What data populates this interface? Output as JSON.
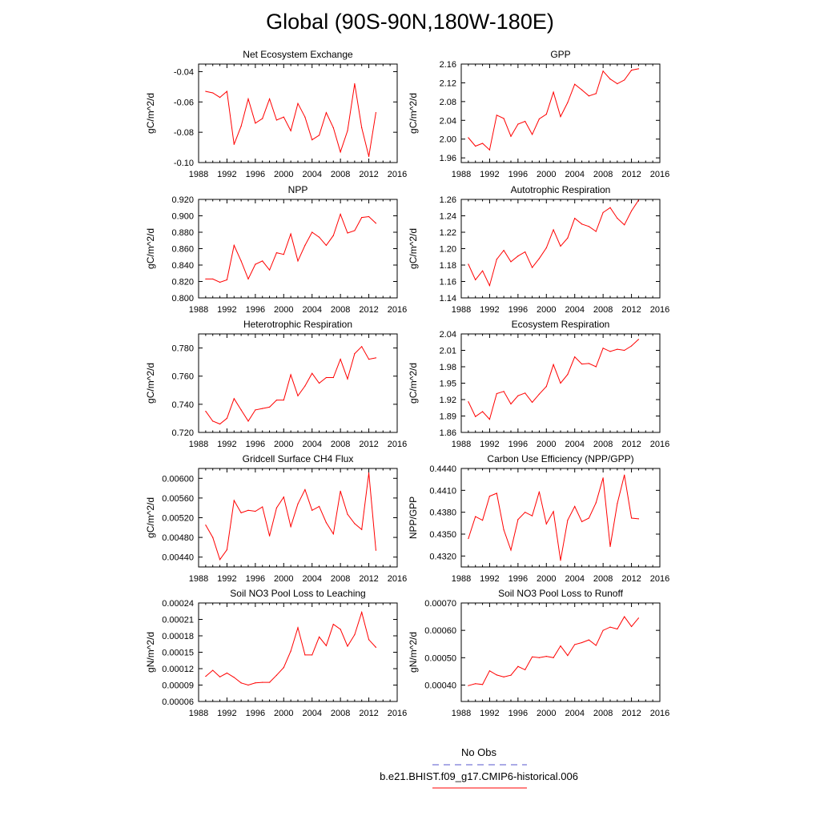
{
  "title": "Global (90S-90N,180W-180E)",
  "legend": {
    "obs_label": "No Obs",
    "obs_color": "#5555cc",
    "model_label": "b.e21.BHIST.f09_g17.CMIP6-historical.006",
    "model_color": "#ff0000"
  },
  "chart_data": [
    {
      "type": "line",
      "title": "Net Ecosystem Exchange",
      "ylabel": "gC/m^2/d",
      "xlim": [
        1988,
        2016
      ],
      "xticks": [
        1988,
        1992,
        1996,
        2000,
        2004,
        2008,
        2012,
        2016
      ],
      "ylim": [
        -0.1,
        -0.035
      ],
      "yticks": [
        -0.1,
        -0.08,
        -0.06,
        -0.04
      ],
      "ytick_labels": [
        "-0.10",
        "-0.08",
        "-0.06",
        "-0.04"
      ],
      "x": [
        1989,
        1990,
        1991,
        1992,
        1993,
        1994,
        1995,
        1996,
        1997,
        1998,
        1999,
        2000,
        2001,
        2002,
        2003,
        2004,
        2005,
        2006,
        2007,
        2008,
        2009,
        2010,
        2011,
        2012,
        2013
      ],
      "values": [
        -0.053,
        -0.054,
        -0.057,
        -0.053,
        -0.088,
        -0.076,
        -0.058,
        -0.074,
        -0.071,
        -0.058,
        -0.072,
        -0.07,
        -0.079,
        -0.061,
        -0.07,
        -0.085,
        -0.082,
        -0.067,
        -0.077,
        -0.093,
        -0.079,
        -0.048,
        -0.077,
        -0.096,
        -0.067
      ]
    },
    {
      "type": "line",
      "title": "GPP",
      "ylabel": "gC/m^2/d",
      "xlim": [
        1988,
        2016
      ],
      "xticks": [
        1988,
        1992,
        1996,
        2000,
        2004,
        2008,
        2012,
        2016
      ],
      "ylim": [
        1.95,
        2.16
      ],
      "yticks": [
        1.96,
        2.0,
        2.04,
        2.08,
        2.12,
        2.16
      ],
      "ytick_labels": [
        "1.96",
        "2.00",
        "2.04",
        "2.08",
        "2.12",
        "2.16"
      ],
      "x": [
        1989,
        1990,
        1991,
        1992,
        1993,
        1994,
        1995,
        1996,
        1997,
        1998,
        1999,
        2000,
        2001,
        2002,
        2003,
        2004,
        2005,
        2006,
        2007,
        2008,
        2009,
        2010,
        2011,
        2012,
        2013
      ],
      "values": [
        2.003,
        1.985,
        1.991,
        1.977,
        2.051,
        2.044,
        2.006,
        2.032,
        2.038,
        2.01,
        2.043,
        2.053,
        2.1,
        2.048,
        2.078,
        2.117,
        2.105,
        2.092,
        2.097,
        2.145,
        2.128,
        2.118,
        2.126,
        2.147,
        2.15
      ]
    },
    {
      "type": "line",
      "title": "NPP",
      "ylabel": "gC/m^2/d",
      "xlim": [
        1988,
        2016
      ],
      "xticks": [
        1988,
        1992,
        1996,
        2000,
        2004,
        2008,
        2012,
        2016
      ],
      "ylim": [
        0.8,
        0.92
      ],
      "yticks": [
        0.8,
        0.82,
        0.84,
        0.86,
        0.88,
        0.9,
        0.92
      ],
      "ytick_labels": [
        "0.800",
        "0.820",
        "0.840",
        "0.860",
        "0.880",
        "0.900",
        "0.920"
      ],
      "x": [
        1989,
        1990,
        1991,
        1992,
        1993,
        1994,
        1995,
        1996,
        1997,
        1998,
        1999,
        2000,
        2001,
        2002,
        2003,
        2004,
        2005,
        2006,
        2007,
        2008,
        2009,
        2010,
        2011,
        2012,
        2013
      ],
      "values": [
        0.823,
        0.823,
        0.819,
        0.822,
        0.864,
        0.845,
        0.823,
        0.841,
        0.845,
        0.834,
        0.855,
        0.853,
        0.878,
        0.845,
        0.864,
        0.88,
        0.874,
        0.864,
        0.876,
        0.902,
        0.879,
        0.882,
        0.898,
        0.899,
        0.891
      ]
    },
    {
      "type": "line",
      "title": "Autotrophic Respiration",
      "ylabel": "gC/m^2/d",
      "xlim": [
        1988,
        2016
      ],
      "xticks": [
        1988,
        1992,
        1996,
        2000,
        2004,
        2008,
        2012,
        2016
      ],
      "ylim": [
        1.14,
        1.26
      ],
      "yticks": [
        1.14,
        1.16,
        1.18,
        1.2,
        1.22,
        1.24,
        1.26
      ],
      "ytick_labels": [
        "1.14",
        "1.16",
        "1.18",
        "1.20",
        "1.22",
        "1.24",
        "1.26"
      ],
      "x": [
        1989,
        1990,
        1991,
        1992,
        1993,
        1994,
        1995,
        1996,
        1997,
        1998,
        1999,
        2000,
        2001,
        2002,
        2003,
        2004,
        2005,
        2006,
        2007,
        2008,
        2009,
        2010,
        2011,
        2012,
        2013
      ],
      "values": [
        1.181,
        1.162,
        1.173,
        1.155,
        1.187,
        1.198,
        1.184,
        1.191,
        1.196,
        1.177,
        1.188,
        1.201,
        1.223,
        1.203,
        1.213,
        1.237,
        1.23,
        1.227,
        1.221,
        1.244,
        1.25,
        1.237,
        1.229,
        1.246,
        1.259
      ]
    },
    {
      "type": "line",
      "title": "Heterotrophic Respiration",
      "ylabel": "gC/m^2/d",
      "xlim": [
        1988,
        2016
      ],
      "xticks": [
        1988,
        1992,
        1996,
        2000,
        2004,
        2008,
        2012,
        2016
      ],
      "ylim": [
        0.72,
        0.79
      ],
      "yticks": [
        0.72,
        0.74,
        0.76,
        0.78
      ],
      "ytick_labels": [
        "0.720",
        "0.740",
        "0.760",
        "0.780"
      ],
      "x": [
        1989,
        1990,
        1991,
        1992,
        1993,
        1994,
        1995,
        1996,
        1997,
        1998,
        1999,
        2000,
        2001,
        2002,
        2003,
        2004,
        2005,
        2006,
        2007,
        2008,
        2009,
        2010,
        2011,
        2012,
        2013
      ],
      "values": [
        0.735,
        0.728,
        0.726,
        0.73,
        0.744,
        0.736,
        0.728,
        0.736,
        0.737,
        0.738,
        0.743,
        0.743,
        0.761,
        0.746,
        0.753,
        0.762,
        0.755,
        0.759,
        0.759,
        0.772,
        0.758,
        0.776,
        0.781,
        0.772,
        0.773
      ]
    },
    {
      "type": "line",
      "title": "Ecosystem Respiration",
      "ylabel": "gC/m^2/d",
      "xlim": [
        1988,
        2016
      ],
      "xticks": [
        1988,
        1992,
        1996,
        2000,
        2004,
        2008,
        2012,
        2016
      ],
      "ylim": [
        1.86,
        2.04
      ],
      "yticks": [
        1.86,
        1.89,
        1.92,
        1.95,
        1.98,
        2.01,
        2.04
      ],
      "ytick_labels": [
        "1.86",
        "1.89",
        "1.92",
        "1.95",
        "1.98",
        "2.01",
        "2.04"
      ],
      "x": [
        1989,
        1990,
        1991,
        1992,
        1993,
        1994,
        1995,
        1996,
        1997,
        1998,
        1999,
        2000,
        2001,
        2002,
        2003,
        2004,
        2005,
        2006,
        2007,
        2008,
        2009,
        2010,
        2011,
        2012,
        2013
      ],
      "values": [
        1.916,
        1.889,
        1.898,
        1.884,
        1.931,
        1.935,
        1.912,
        1.927,
        1.932,
        1.915,
        1.93,
        1.944,
        1.984,
        1.95,
        1.966,
        1.998,
        1.985,
        1.986,
        1.98,
        2.014,
        2.008,
        2.012,
        2.01,
        2.018,
        2.03
      ]
    },
    {
      "type": "line",
      "title": "Gridcell Surface CH4 Flux",
      "ylabel": "gC/m^2/d",
      "xlim": [
        1988,
        2016
      ],
      "xticks": [
        1988,
        1992,
        1996,
        2000,
        2004,
        2008,
        2012,
        2016
      ],
      "ylim": [
        0.0042,
        0.0062
      ],
      "yticks": [
        0.0044,
        0.0048,
        0.0052,
        0.0056,
        0.006
      ],
      "ytick_labels": [
        "0.00440",
        "0.00480",
        "0.00520",
        "0.00560",
        "0.00600"
      ],
      "x": [
        1989,
        1990,
        1991,
        1992,
        1993,
        1994,
        1995,
        1996,
        1997,
        1998,
        1999,
        2000,
        2001,
        2002,
        2003,
        2004,
        2005,
        2006,
        2007,
        2008,
        2009,
        2010,
        2011,
        2012,
        2013
      ],
      "values": [
        0.00505,
        0.0048,
        0.00435,
        0.00455,
        0.00555,
        0.0053,
        0.00535,
        0.00533,
        0.00542,
        0.00483,
        0.0054,
        0.00562,
        0.00502,
        0.00548,
        0.00577,
        0.00535,
        0.00543,
        0.0051,
        0.00487,
        0.00574,
        0.00527,
        0.00508,
        0.00496,
        0.00611,
        0.00454
      ]
    },
    {
      "type": "line",
      "title": "Carbon Use Efficiency (NPP/GPP)",
      "ylabel": "NPP/GPP",
      "xlim": [
        1988,
        2016
      ],
      "xticks": [
        1988,
        1992,
        1996,
        2000,
        2004,
        2008,
        2012,
        2016
      ],
      "ylim": [
        0.4305,
        0.444
      ],
      "yticks": [
        0.432,
        0.435,
        0.438,
        0.441,
        0.444
      ],
      "ytick_labels": [
        "0.4320",
        "0.4350",
        "0.4380",
        "0.4410",
        "0.4440"
      ],
      "x": [
        1989,
        1990,
        1991,
        1992,
        1993,
        1994,
        1995,
        1996,
        1997,
        1998,
        1999,
        2000,
        2001,
        2002,
        2003,
        2004,
        2005,
        2006,
        2007,
        2008,
        2009,
        2010,
        2011,
        2012,
        2013
      ],
      "values": [
        0.4344,
        0.4374,
        0.4369,
        0.4402,
        0.4406,
        0.4356,
        0.4328,
        0.437,
        0.438,
        0.4375,
        0.4408,
        0.4364,
        0.4381,
        0.4314,
        0.4369,
        0.4388,
        0.4367,
        0.4372,
        0.4393,
        0.4427,
        0.4333,
        0.4392,
        0.4431,
        0.4372,
        0.4371
      ]
    },
    {
      "type": "line",
      "title": "Soil NO3 Pool Loss to Leaching",
      "ylabel": "gN/m^2/d",
      "xlim": [
        1988,
        2016
      ],
      "xticks": [
        1988,
        1992,
        1996,
        2000,
        2004,
        2008,
        2012,
        2016
      ],
      "ylim": [
        6e-05,
        0.00024
      ],
      "yticks": [
        6e-05,
        9e-05,
        0.00012,
        0.00015,
        0.00018,
        0.00021,
        0.00024
      ],
      "ytick_labels": [
        "0.00006",
        "0.00009",
        "0.00012",
        "0.00015",
        "0.00018",
        "0.00021",
        "0.00024"
      ],
      "x": [
        1989,
        1990,
        1991,
        1992,
        1993,
        1994,
        1995,
        1996,
        1997,
        1998,
        1999,
        2000,
        2001,
        2002,
        2003,
        2004,
        2005,
        2006,
        2007,
        2008,
        2009,
        2010,
        2011,
        2012,
        2013
      ],
      "values": [
        0.000106,
        0.000117,
        0.000105,
        0.000112,
        0.000104,
        9.4e-05,
        9e-05,
        9.4e-05,
        9.5e-05,
        9.5e-05,
        0.000108,
        0.000122,
        0.000152,
        0.000195,
        0.000145,
        0.000145,
        0.000178,
        0.000162,
        0.000201,
        0.000192,
        0.000161,
        0.000182,
        0.000223,
        0.000173,
        0.000159
      ]
    },
    {
      "type": "line",
      "title": "Soil NO3 Pool Loss to Runoff",
      "ylabel": "gN/m^2/d",
      "xlim": [
        1988,
        2016
      ],
      "xticks": [
        1988,
        1992,
        1996,
        2000,
        2004,
        2008,
        2012,
        2016
      ],
      "ylim": [
        0.00034,
        0.0007
      ],
      "yticks": [
        0.0004,
        0.0005,
        0.0006,
        0.0007
      ],
      "ytick_labels": [
        "0.00040",
        "0.00050",
        "0.00060",
        "0.00070"
      ],
      "x": [
        1989,
        1990,
        1991,
        1992,
        1993,
        1994,
        1995,
        1996,
        1997,
        1998,
        1999,
        2000,
        2001,
        2002,
        2003,
        2004,
        2005,
        2006,
        2007,
        2008,
        2009,
        2010,
        2011,
        2012,
        2013
      ],
      "values": [
        0.000398,
        0.000405,
        0.000402,
        0.000452,
        0.000437,
        0.00043,
        0.000436,
        0.000468,
        0.000456,
        0.000503,
        0.0005,
        0.000505,
        0.0005,
        0.000543,
        0.000508,
        0.000548,
        0.000555,
        0.000565,
        0.000545,
        0.0006,
        0.000612,
        0.000605,
        0.00065,
        0.000614,
        0.000645
      ]
    }
  ]
}
